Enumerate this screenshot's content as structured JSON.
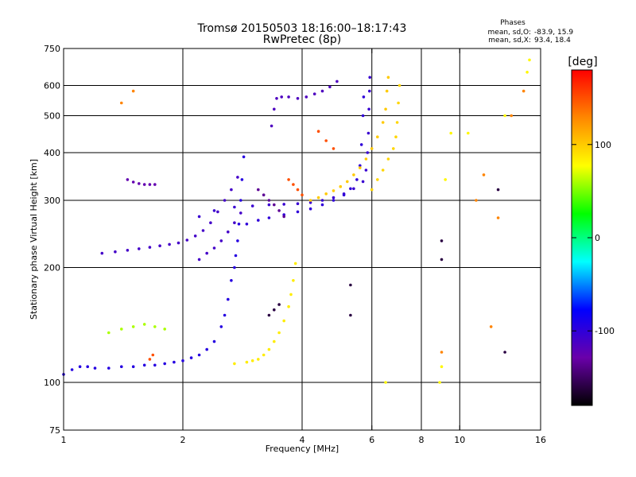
{
  "chart_data": {
    "type": "scatter",
    "title": "Tromsø 20150503 18:16:00–18:17:43",
    "subtitle": "RwPretec (8p)",
    "xlabel": "Frequency [MHz]",
    "ylabel": "Stationary phase Virtual Height [km]",
    "xscale": "log",
    "yscale": "log",
    "xlim": [
      1,
      16
    ],
    "ylim": [
      75,
      750
    ],
    "x_ticks": [
      1,
      2,
      4,
      6,
      8,
      10,
      16
    ],
    "x_tick_labels": [
      "1",
      "2",
      "4",
      "6",
      "8",
      "10",
      "16"
    ],
    "x_gridlines": [
      2,
      4,
      6,
      8,
      10
    ],
    "y_ticks": [
      75,
      100,
      200,
      300,
      400,
      500,
      600,
      750
    ],
    "y_tick_labels": [
      "75",
      "100",
      "200",
      "300",
      "400",
      "500",
      "600",
      "750"
    ],
    "y_gridlines": [
      100,
      200,
      300,
      400,
      500,
      600
    ],
    "grid": true,
    "stats": {
      "title": "Phases",
      "o_label": "mean, sd,O:",
      "o_values": "-83.9, 15.9",
      "x_label": "mean, sd,X:",
      "x_values": "93.4, 18.4"
    },
    "colorbar": {
      "label": "[deg]",
      "range": [
        -180,
        180
      ],
      "ticks": [
        100,
        0,
        -100
      ],
      "tick_labels": [
        "100",
        "0",
        "-100"
      ],
      "colors": [
        "#ff0000",
        "#ff8800",
        "#ffff00",
        "#00ff00",
        "#00ffff",
        "#0000ff",
        "#6a00aa",
        "#000000"
      ]
    },
    "series": [
      {
        "phase": -95,
        "points": [
          [
            1.0,
            105
          ],
          [
            1.05,
            108
          ],
          [
            1.1,
            110
          ],
          [
            1.15,
            110
          ],
          [
            1.2,
            109
          ],
          [
            1.3,
            109
          ],
          [
            1.4,
            110
          ],
          [
            1.5,
            110
          ],
          [
            1.6,
            111
          ],
          [
            1.7,
            111
          ],
          [
            1.8,
            112
          ],
          [
            1.9,
            113
          ],
          [
            2.0,
            114
          ],
          [
            2.1,
            116
          ],
          [
            2.2,
            118
          ],
          [
            2.3,
            122
          ],
          [
            2.4,
            128
          ],
          [
            2.5,
            140
          ],
          [
            2.55,
            150
          ],
          [
            2.6,
            165
          ],
          [
            2.65,
            185
          ],
          [
            2.7,
            200
          ],
          [
            2.72,
            215
          ],
          [
            2.75,
            235
          ],
          [
            2.77,
            260
          ],
          [
            2.8,
            300
          ],
          [
            2.82,
            340
          ],
          [
            2.85,
            390
          ]
        ]
      },
      {
        "phase": -110,
        "points": [
          [
            1.25,
            218
          ],
          [
            1.35,
            220
          ],
          [
            1.45,
            222
          ],
          [
            1.55,
            224
          ],
          [
            1.65,
            226
          ],
          [
            1.75,
            228
          ],
          [
            1.85,
            230
          ],
          [
            1.95,
            232
          ],
          [
            2.05,
            236
          ],
          [
            2.15,
            242
          ],
          [
            2.25,
            250
          ],
          [
            2.35,
            262
          ],
          [
            2.45,
            280
          ],
          [
            2.55,
            300
          ],
          [
            2.65,
            320
          ],
          [
            2.75,
            345
          ]
        ]
      },
      {
        "phase": -105,
        "points": [
          [
            2.2,
            272
          ],
          [
            2.4,
            282
          ],
          [
            2.7,
            288
          ],
          [
            3.0,
            290
          ],
          [
            3.3,
            292
          ],
          [
            3.6,
            293
          ],
          [
            3.9,
            294
          ],
          [
            4.2,
            296
          ],
          [
            4.5,
            300
          ],
          [
            4.8,
            305
          ],
          [
            5.1,
            312
          ],
          [
            5.4,
            322
          ],
          [
            5.7,
            336
          ],
          [
            5.8,
            360
          ],
          [
            5.85,
            400
          ],
          [
            5.88,
            450
          ],
          [
            5.9,
            520
          ],
          [
            5.92,
            580
          ],
          [
            5.93,
            630
          ]
        ]
      },
      {
        "phase": -100,
        "points": [
          [
            2.9,
            260
          ],
          [
            3.1,
            266
          ],
          [
            3.3,
            270
          ],
          [
            3.6,
            275
          ],
          [
            3.9,
            280
          ],
          [
            4.2,
            285
          ],
          [
            4.5,
            292
          ],
          [
            4.8,
            300
          ],
          [
            5.1,
            310
          ],
          [
            5.3,
            322
          ],
          [
            5.5,
            340
          ],
          [
            5.6,
            370
          ],
          [
            5.65,
            420
          ],
          [
            5.7,
            500
          ],
          [
            5.72,
            560
          ]
        ]
      },
      {
        "phase": -115,
        "points": [
          [
            3.35,
            470
          ],
          [
            3.4,
            520
          ],
          [
            3.45,
            555
          ],
          [
            3.55,
            560
          ],
          [
            3.7,
            560
          ],
          [
            3.9,
            555
          ],
          [
            4.1,
            560
          ],
          [
            4.3,
            570
          ],
          [
            4.5,
            580
          ],
          [
            4.7,
            595
          ],
          [
            4.9,
            615
          ]
        ]
      },
      {
        "phase": -110,
        "points": [
          [
            2.2,
            210
          ],
          [
            2.3,
            218
          ],
          [
            2.4,
            225
          ],
          [
            2.5,
            235
          ],
          [
            2.6,
            248
          ],
          [
            2.7,
            262
          ],
          [
            2.8,
            278
          ]
        ]
      },
      {
        "phase": 85,
        "points": [
          [
            2.7,
            112
          ],
          [
            2.9,
            113
          ],
          [
            3.0,
            114
          ],
          [
            3.1,
            115
          ],
          [
            3.2,
            118
          ],
          [
            3.3,
            122
          ],
          [
            3.4,
            128
          ],
          [
            3.5,
            135
          ],
          [
            3.6,
            145
          ],
          [
            3.7,
            158
          ],
          [
            3.75,
            170
          ],
          [
            3.8,
            185
          ],
          [
            3.85,
            205
          ]
        ]
      },
      {
        "phase": 100,
        "points": [
          [
            4.2,
            300
          ],
          [
            4.4,
            305
          ],
          [
            4.6,
            312
          ],
          [
            4.8,
            318
          ],
          [
            5.0,
            326
          ],
          [
            5.2,
            336
          ],
          [
            5.4,
            350
          ],
          [
            5.6,
            365
          ],
          [
            5.8,
            385
          ],
          [
            6.0,
            410
          ],
          [
            6.2,
            440
          ],
          [
            6.4,
            480
          ],
          [
            6.5,
            520
          ],
          [
            6.55,
            580
          ],
          [
            6.6,
            630
          ]
        ]
      },
      {
        "phase": 95,
        "points": [
          [
            6.0,
            320
          ],
          [
            6.2,
            340
          ],
          [
            6.4,
            360
          ],
          [
            6.6,
            385
          ],
          [
            6.8,
            410
          ],
          [
            6.9,
            440
          ],
          [
            6.95,
            480
          ],
          [
            7.0,
            540
          ],
          [
            7.05,
            600
          ]
        ]
      },
      {
        "phase": -125,
        "points": [
          [
            1.5,
            335
          ],
          [
            1.55,
            332
          ],
          [
            1.6,
            330
          ],
          [
            1.65,
            330
          ],
          [
            1.7,
            330
          ],
          [
            1.45,
            340
          ]
        ]
      },
      {
        "phase": 150,
        "points": [
          [
            1.65,
            115
          ],
          [
            1.68,
            118
          ],
          [
            3.7,
            340
          ],
          [
            3.8,
            330
          ],
          [
            3.9,
            320
          ],
          [
            4.0,
            310
          ],
          [
            4.4,
            455
          ],
          [
            4.6,
            430
          ],
          [
            4.8,
            410
          ]
        ]
      },
      {
        "phase": -135,
        "points": [
          [
            3.1,
            320
          ],
          [
            3.2,
            310
          ],
          [
            3.3,
            300
          ],
          [
            3.4,
            292
          ],
          [
            3.5,
            282
          ],
          [
            3.6,
            272
          ]
        ]
      },
      {
        "phase": 60,
        "points": [
          [
            1.3,
            135
          ],
          [
            1.4,
            138
          ],
          [
            1.5,
            140
          ],
          [
            1.6,
            142
          ],
          [
            1.7,
            140
          ],
          [
            1.8,
            138
          ]
        ]
      },
      {
        "phase": -160,
        "points": [
          [
            3.3,
            150
          ],
          [
            3.4,
            155
          ],
          [
            3.5,
            160
          ],
          [
            5.3,
            150
          ],
          [
            5.3,
            180
          ],
          [
            9.0,
            210
          ],
          [
            9.0,
            235
          ],
          [
            12.5,
            320
          ],
          [
            13.0,
            120
          ]
        ]
      },
      {
        "phase": 130,
        "points": [
          [
            1.4,
            540
          ],
          [
            1.5,
            580
          ],
          [
            11.0,
            300
          ],
          [
            11.5,
            350
          ],
          [
            12.5,
            270
          ],
          [
            13.5,
            500
          ],
          [
            14.5,
            580
          ],
          [
            9.0,
            120
          ],
          [
            12.0,
            140
          ]
        ]
      },
      {
        "phase": 80,
        "points": [
          [
            6.5,
            100
          ],
          [
            8.9,
            100
          ],
          [
            9.0,
            110
          ],
          [
            9.2,
            340
          ],
          [
            9.5,
            450
          ],
          [
            10.5,
            450
          ],
          [
            13.0,
            500
          ],
          [
            14.8,
            650
          ],
          [
            15.0,
            700
          ]
        ]
      }
    ]
  }
}
